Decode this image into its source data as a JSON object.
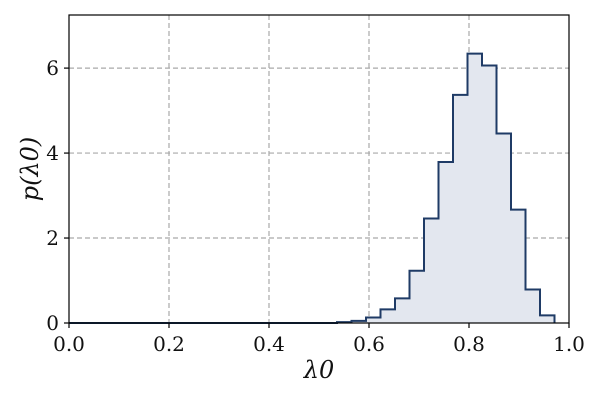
{
  "chart_data": {
    "type": "bar",
    "style": "step-histogram",
    "xlabel": "λ0",
    "ylabel": "p(λ0)",
    "xlim": [
      0.0,
      1.0
    ],
    "ylim": [
      0,
      7.25
    ],
    "x_ticks": [
      "0.0",
      "0.2",
      "0.4",
      "0.6",
      "0.8",
      "1.0"
    ],
    "y_ticks": [
      "0",
      "2",
      "4",
      "6"
    ],
    "grid": true,
    "line_color": "#1f3b66",
    "fill_color": "#e3e7ef",
    "bin_width": 0.029,
    "bin_edges": [
      0.536,
      0.565,
      0.594,
      0.623,
      0.652,
      0.681,
      0.71,
      0.739,
      0.768,
      0.797,
      0.826,
      0.855,
      0.884,
      0.913,
      0.942,
      0.971
    ],
    "values": [
      0.02,
      0.05,
      0.13,
      0.32,
      0.58,
      1.23,
      2.46,
      3.79,
      5.37,
      6.34,
      6.06,
      4.46,
      2.67,
      0.79,
      0.18
    ]
  }
}
